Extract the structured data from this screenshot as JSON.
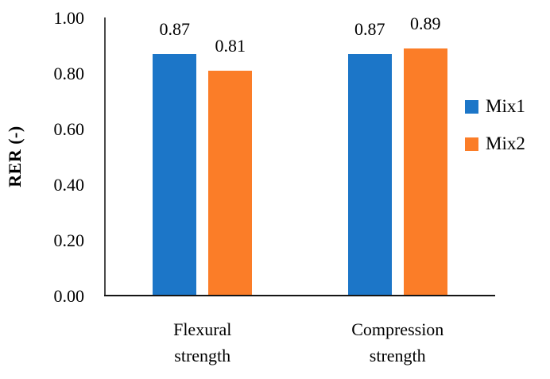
{
  "figure": {
    "background": "#ffffff",
    "text_color": "#000000"
  },
  "chart_data": {
    "type": "bar",
    "title": "",
    "xlabel": "",
    "ylabel": "RER (-)",
    "categories": [
      "Flexural\nstrength",
      "Compression\nstrength"
    ],
    "series": [
      {
        "name": "Mix1",
        "color": "#1C76C8",
        "values": [
          0.87,
          0.87
        ]
      },
      {
        "name": "Mix2",
        "color": "#FB7D28",
        "values": [
          0.81,
          0.89
        ]
      }
    ],
    "value_labels": [
      "0.87",
      "0.81",
      "0.87",
      "0.89"
    ],
    "ylim": [
      0,
      1
    ],
    "yticks": [
      0,
      0.2,
      0.4,
      0.6,
      0.8,
      1
    ],
    "ytick_labels": [
      "0.00",
      "0.20",
      "0.40",
      "0.60",
      "0.80",
      "1.00"
    ],
    "grid": false,
    "legend_position": "right",
    "axis_color_y": "#4a4a4a",
    "axis_color_x": "#151515"
  }
}
